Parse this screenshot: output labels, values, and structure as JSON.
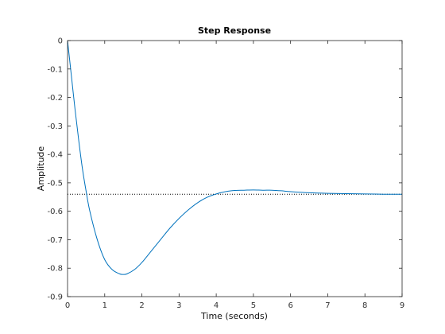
{
  "chart_data": {
    "type": "line",
    "title": "Step Response",
    "xlabel": "Time (seconds)",
    "ylabel": "Amplitude",
    "xlim": [
      0,
      9
    ],
    "ylim": [
      -0.9,
      0
    ],
    "x_ticks": [
      "0",
      "1",
      "2",
      "3",
      "4",
      "5",
      "6",
      "7",
      "8",
      "9"
    ],
    "y_ticks": [
      "0",
      "-0.1",
      "-0.2",
      "-0.3",
      "-0.4",
      "-0.5",
      "-0.6",
      "-0.7",
      "-0.8",
      "-0.9"
    ],
    "grid": false,
    "series": [
      {
        "color": "#0072bd",
        "x": [
          0,
          0.05,
          0.1,
          0.2,
          0.3,
          0.4,
          0.5,
          0.6,
          0.8,
          1.0,
          1.2,
          1.4,
          1.5,
          1.6,
          1.8,
          2.0,
          2.25,
          2.5,
          2.75,
          3.0,
          3.25,
          3.5,
          3.75,
          4.0,
          4.25,
          4.5,
          4.75,
          5.0,
          5.25,
          5.5,
          5.75,
          6.0,
          6.5,
          7.0,
          7.5,
          8.0,
          8.5,
          9.0
        ],
        "y": [
          0,
          -0.06,
          -0.12,
          -0.24,
          -0.35,
          -0.45,
          -0.53,
          -0.6,
          -0.7,
          -0.77,
          -0.805,
          -0.82,
          -0.822,
          -0.82,
          -0.805,
          -0.78,
          -0.74,
          -0.7,
          -0.66,
          -0.625,
          -0.595,
          -0.57,
          -0.551,
          -0.539,
          -0.531,
          -0.527,
          -0.526,
          -0.525,
          -0.526,
          -0.526,
          -0.528,
          -0.531,
          -0.535,
          -0.537,
          -0.538,
          -0.539,
          -0.54,
          -0.54
        ]
      }
    ],
    "reference_lines": [
      {
        "y": -0.54,
        "style": "dotted",
        "x_range": [
          0,
          9
        ],
        "color": "#000000"
      }
    ]
  }
}
